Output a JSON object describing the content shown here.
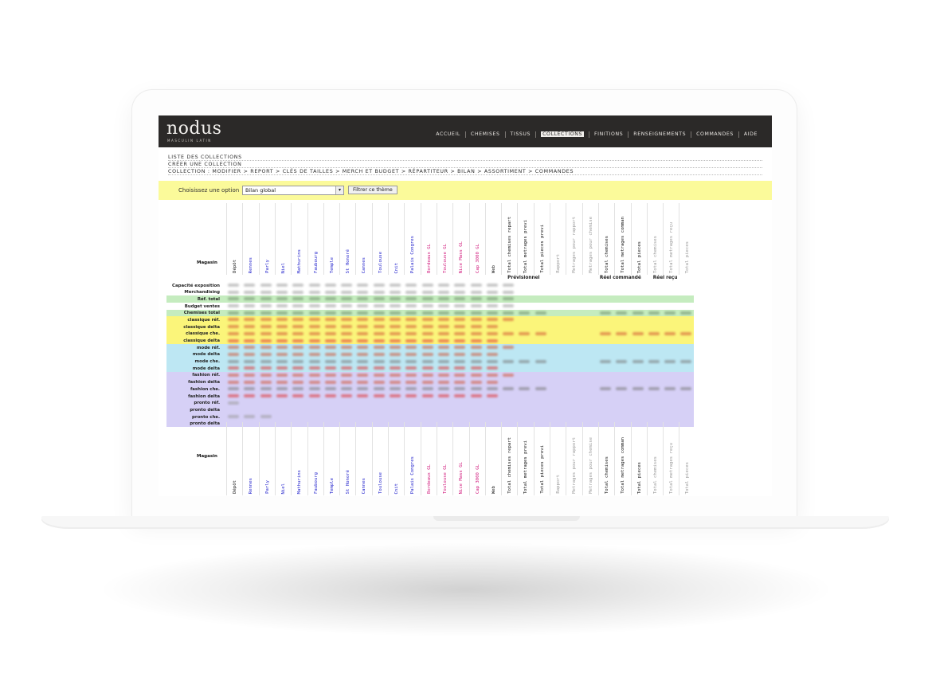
{
  "brand": {
    "logo": "nodus",
    "tagline": "MASCULIN LATIN"
  },
  "nav": [
    {
      "label": "ACCUEIL",
      "active": false
    },
    {
      "label": "CHEMISES",
      "active": false
    },
    {
      "label": "TISSUS",
      "active": false
    },
    {
      "label": "COLLECTIONS",
      "active": true
    },
    {
      "label": "FINITIONS",
      "active": false
    },
    {
      "label": "RENSEIGNEMENTS",
      "active": false
    },
    {
      "label": "COMMANDES",
      "active": false
    },
    {
      "label": "AIDE",
      "active": false
    }
  ],
  "links": {
    "list": "LISTE DES COLLECTIONS",
    "create": "CRÉER UNE COLLECTION",
    "breadcrumb": "COLLECTION : MODIFIER > REPORT > CLÉS DE TAILLES > MERCH ET BUDGET > RÉPARTITEUR > BILAN > ASSORTIMENT > COMMANDES"
  },
  "filter": {
    "label": "Choisissez une option",
    "selected": "Bilan global",
    "button": "Filtrer ce thème"
  },
  "table": {
    "corner_label": "Magasin",
    "columns": [
      {
        "label": "Dépôt",
        "color": "#111111"
      },
      {
        "label": "Rennes",
        "color": "#2222cc"
      },
      {
        "label": "Parly",
        "color": "#2222cc"
      },
      {
        "label": "Niel",
        "color": "#2222cc"
      },
      {
        "label": "Mathurins",
        "color": "#2222cc"
      },
      {
        "label": "Faubourg",
        "color": "#2222cc"
      },
      {
        "label": "Temple",
        "color": "#2222cc"
      },
      {
        "label": "St Honoré",
        "color": "#2222cc"
      },
      {
        "label": "Cannes",
        "color": "#2222cc"
      },
      {
        "label": "Toulouse",
        "color": "#2222cc"
      },
      {
        "label": "Cnit",
        "color": "#2222cc"
      },
      {
        "label": "Palais Congres",
        "color": "#2222cc"
      },
      {
        "label": "Bordeaux GL",
        "color": "#d0157a"
      },
      {
        "label": "Toulouse GL",
        "color": "#d0157a"
      },
      {
        "label": "Nice Mass GL",
        "color": "#d0157a"
      },
      {
        "label": "Cap 3000 GL",
        "color": "#d0157a"
      },
      {
        "label": "Web",
        "color": "#111111"
      },
      {
        "label": "Total chemises repart",
        "color": "#111111"
      },
      {
        "label": "Total metrages previ",
        "color": "#111111"
      },
      {
        "label": "Total pieces previ",
        "color": "#111111"
      },
      {
        "label": "Rapport",
        "color": "#999999"
      },
      {
        "label": "Metrages pour rapport",
        "color": "#999999"
      },
      {
        "label": "Metrages pour chemise",
        "color": "#999999"
      },
      {
        "label": "Total chemises",
        "color": "#111111"
      },
      {
        "label": "Total metrages comman",
        "color": "#111111"
      },
      {
        "label": "Total pieces",
        "color": "#111111"
      },
      {
        "label": "Total chemises",
        "color": "#999999"
      },
      {
        "label": "Total metrages reçu",
        "color": "#999999"
      },
      {
        "label": "Total pieces",
        "color": "#999999"
      }
    ],
    "groups": [
      {
        "label": "Prévisionnel"
      },
      {
        "label": "Réel commandé"
      },
      {
        "label": "Réel reçu"
      }
    ],
    "rows": [
      {
        "label": "Capacité exposition",
        "bg": "#ffffff",
        "ink": "#9a9a9a",
        "filled": 18
      },
      {
        "label": "Merchandising",
        "bg": "#ffffff",
        "ink": "#9a9a9a",
        "filled": 18
      },
      {
        "label": "Réf. total",
        "bg": "#c5ecbf",
        "ink": "#6c8a68",
        "filled": 18
      },
      {
        "label": "Budget ventes",
        "bg": "#ffffff",
        "ink": "#9a9a9a",
        "filled": 18
      },
      {
        "label": "Chemises total",
        "bg": "#c5ecbf",
        "ink": "#6c8a68",
        "filled": 28
      },
      {
        "label": "classique réf.",
        "bg": "#fbf57a",
        "ink": "#d05030",
        "filled": 18
      },
      {
        "label": "classique delta",
        "bg": "#fbf57a",
        "ink": "#d05030",
        "filled": 17
      },
      {
        "label": "classique che.",
        "bg": "#fbf57a",
        "ink": "#d05030",
        "filled": 28
      },
      {
        "label": "classique delta",
        "bg": "#fbf57a",
        "ink": "#e03030",
        "filled": 17
      },
      {
        "label": "mode réf.",
        "bg": "#bde7f3",
        "ink": "#d05030",
        "filled": 18
      },
      {
        "label": "mode delta",
        "bg": "#bde7f3",
        "ink": "#d05030",
        "filled": 17
      },
      {
        "label": "mode che.",
        "bg": "#bde7f3",
        "ink": "#777777",
        "filled": 28
      },
      {
        "label": "mode delta",
        "bg": "#bde7f3",
        "ink": "#e03030",
        "filled": 17
      },
      {
        "label": "fashion réf.",
        "bg": "#d6d0f6",
        "ink": "#d05030",
        "filled": 18
      },
      {
        "label": "fashion delta",
        "bg": "#d6d0f6",
        "ink": "#d05030",
        "filled": 17
      },
      {
        "label": "fashion che.",
        "bg": "#d6d0f6",
        "ink": "#777777",
        "filled": 28
      },
      {
        "label": "fashion delta",
        "bg": "#d6d0f6",
        "ink": "#e03030",
        "filled": 17
      },
      {
        "label": "pronto réf.",
        "bg": "#d6d0f6",
        "ink": "#999999",
        "filled": 1
      },
      {
        "label": "pronto delta",
        "bg": "#d6d0f6",
        "ink": "#999999",
        "filled": 0
      },
      {
        "label": "pronto che.",
        "bg": "#d6d0f6",
        "ink": "#999999",
        "filled": 3
      },
      {
        "label": "pronto delta",
        "bg": "#d6d0f6",
        "ink": "#999999",
        "filled": 0
      }
    ]
  }
}
